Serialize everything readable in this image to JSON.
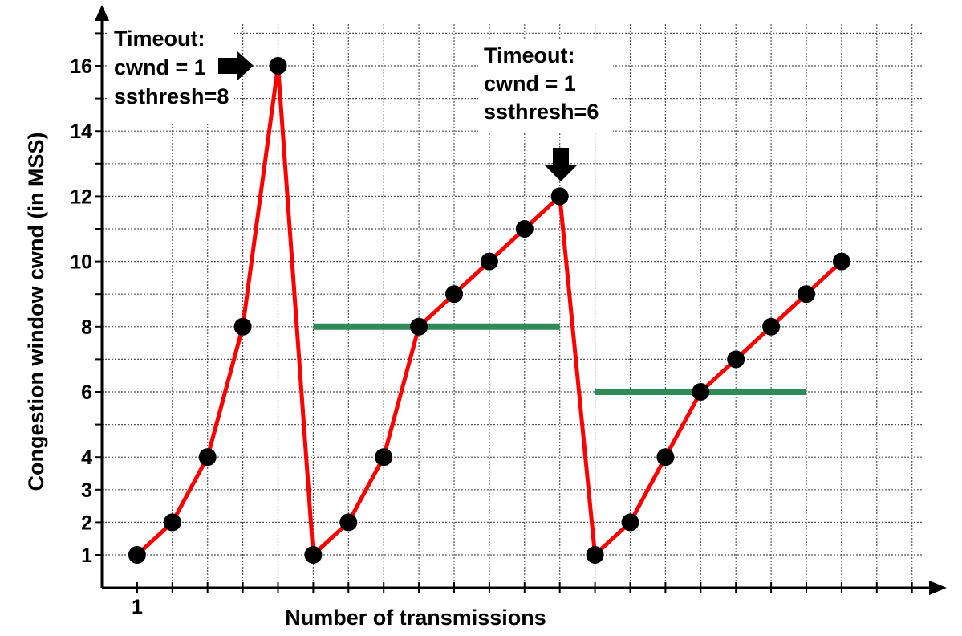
{
  "chart_data": {
    "type": "line",
    "xlabel": "Number of transmissions",
    "ylabel": "Congestion window cwnd (in MSS)",
    "x_tick_labels": [
      "1"
    ],
    "y_tick_labels": [
      "1",
      "2",
      "3",
      "4",
      "6",
      "8",
      "10",
      "12",
      "14",
      "16"
    ],
    "xlim": [
      0,
      23.5
    ],
    "ylim": [
      0.5,
      17
    ],
    "grid": true,
    "series": [
      {
        "color": "#ff0000",
        "marker_color": "#000000",
        "points": [
          [
            1,
            1
          ],
          [
            2,
            2
          ],
          [
            3,
            4
          ],
          [
            4,
            8
          ],
          [
            5,
            16
          ],
          [
            6,
            1
          ],
          [
            7,
            2
          ],
          [
            8,
            4
          ],
          [
            9,
            8
          ],
          [
            10,
            9
          ],
          [
            11,
            10
          ],
          [
            12,
            11
          ],
          [
            13,
            12
          ],
          [
            14,
            1
          ],
          [
            15,
            2
          ],
          [
            16,
            4
          ],
          [
            17,
            6
          ],
          [
            18,
            7
          ],
          [
            19,
            8
          ],
          [
            20,
            9
          ],
          [
            21,
            10
          ]
        ]
      }
    ],
    "thresholds": [
      {
        "value": 8,
        "x_start": 6,
        "x_end": 13,
        "color": "#2e8b57"
      },
      {
        "value": 6,
        "x_start": 14,
        "x_end": 20,
        "color": "#2e8b57"
      }
    ],
    "annotations": [
      {
        "lines": [
          "Timeout:",
          "cwnd = 1",
          "ssthresh=8"
        ],
        "arrow": "right"
      },
      {
        "lines": [
          "Timeout:",
          "cwnd = 1",
          "ssthresh=6"
        ],
        "arrow": "down"
      }
    ]
  }
}
